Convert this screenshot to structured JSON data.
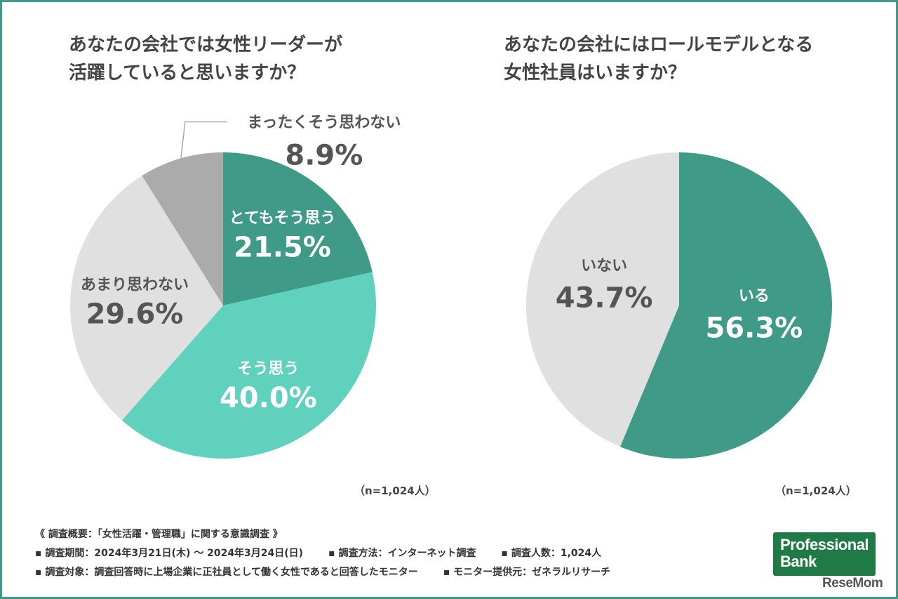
{
  "chart_data": [
    {
      "type": "pie",
      "title": "あなたの会社では女性リーダーが\n活躍していると思いますか？",
      "title_lines": [
        "あなたの会社では女性リーダーが",
        "活躍していると思いますか？"
      ],
      "categories": [
        "とてもそう思う",
        "そう思う",
        "あまり思わない",
        "まったくそう思わない"
      ],
      "values": [
        21.5,
        40.0,
        29.6,
        8.9
      ],
      "value_labels": [
        "21.5%",
        "40.0%",
        "29.6%",
        "8.9%"
      ],
      "colors": [
        "#3f9a87",
        "#5fd1bd",
        "#e0e0e0",
        "#ababab"
      ],
      "note": "（n=1,024人）"
    },
    {
      "type": "pie",
      "title": "あなたの会社にはロールモデルとなる\n女性社員はいますか？",
      "title_lines": [
        "あなたの会社にはロールモデルとなる",
        "女性社員はいますか？"
      ],
      "categories": [
        "いる",
        "いない"
      ],
      "values": [
        56.3,
        43.7
      ],
      "value_labels": [
        "56.3%",
        "43.7%"
      ],
      "colors": [
        "#3f9a87",
        "#e0e0e0"
      ],
      "note": "（n=1,024人）"
    }
  ],
  "footer": {
    "line1": "《 調査概要：「女性活躍・管理職」に関する意識調査 》",
    "period": "▪ 調査期間：2024年3月21日(木) ～ 2024年3月24日(日)",
    "method": "▪ 調査方法：インターネット調査",
    "count": "▪ 調査人数：1,024人",
    "target": "▪ 調査対象：調査回答時に上場企業に正社員として働く女性であると回答したモニター",
    "provider": "▪ モニター提供元：ゼネラルリサーチ"
  },
  "logo": {
    "line1": "Professional",
    "line2": "Bank"
  },
  "watermark": "ReseMom"
}
